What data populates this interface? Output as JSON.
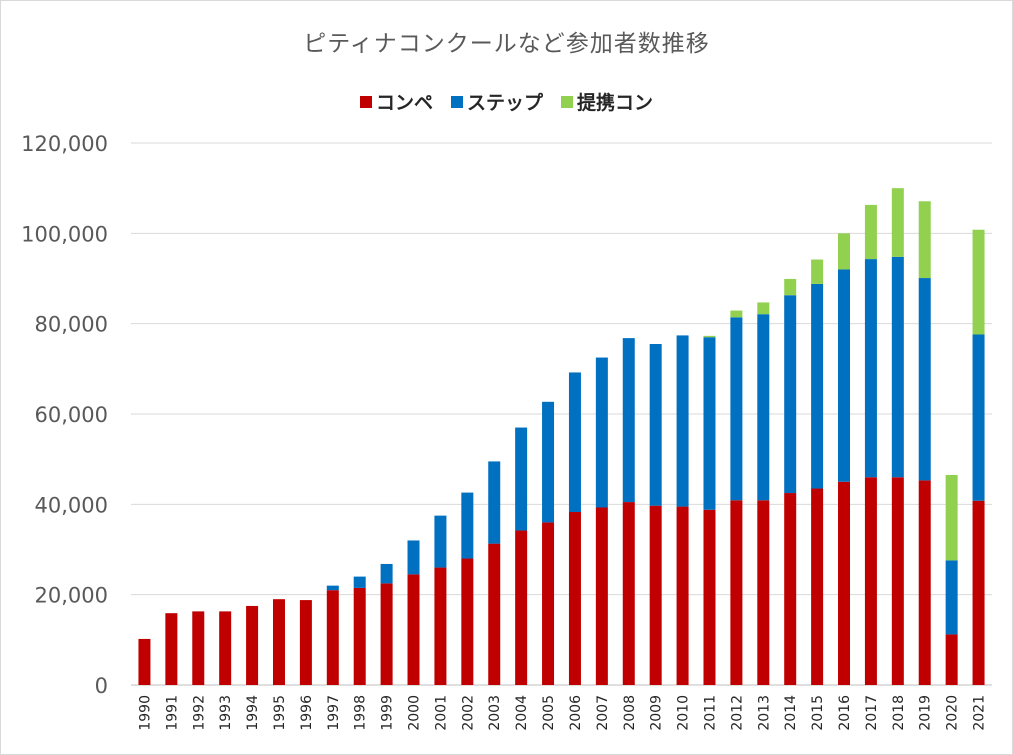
{
  "chart_data": {
    "type": "bar",
    "stacked": true,
    "title": "ピティナコンクールなど参加者数推移",
    "xlabel": "",
    "ylabel": "",
    "ylim": [
      0,
      120000
    ],
    "yticks": [
      0,
      20000,
      40000,
      60000,
      80000,
      100000,
      120000
    ],
    "ytick_labels": [
      "0",
      "20,000",
      "40,000",
      "60,000",
      "80,000",
      "100,000",
      "120,000"
    ],
    "grid": true,
    "legend_position": "top",
    "categories": [
      "1990",
      "1991",
      "1992",
      "1993",
      "1994",
      "1995",
      "1996",
      "1997",
      "1998",
      "1999",
      "2000",
      "2001",
      "2002",
      "2003",
      "2004",
      "2005",
      "2006",
      "2007",
      "2008",
      "2009",
      "2010",
      "2011",
      "2012",
      "2013",
      "2014",
      "2015",
      "2016",
      "2017",
      "2018",
      "2019",
      "2020",
      "2021"
    ],
    "series": [
      {
        "name": "コンペ",
        "color": "#c00000",
        "values": [
          10200,
          15900,
          16300,
          16300,
          17500,
          19000,
          18800,
          21000,
          21500,
          22500,
          24500,
          26000,
          28000,
          31300,
          34200,
          36000,
          38300,
          39300,
          40500,
          39700,
          39500,
          38800,
          40900,
          40900,
          42500,
          43500,
          45000,
          46000,
          46000,
          45300,
          11200,
          40800
        ]
      },
      {
        "name": "ステップ",
        "color": "#0070c0",
        "values": [
          0,
          0,
          0,
          0,
          0,
          0,
          0,
          1000,
          2500,
          4300,
          7500,
          11500,
          14600,
          18200,
          22800,
          26700,
          30900,
          33200,
          36300,
          35800,
          37900,
          38200,
          40500,
          41200,
          43800,
          45300,
          47000,
          48300,
          48800,
          44800,
          16400,
          36800
        ]
      },
      {
        "name": "提携コン",
        "color": "#92d050",
        "values": [
          0,
          0,
          0,
          0,
          0,
          0,
          0,
          0,
          0,
          0,
          0,
          0,
          0,
          0,
          0,
          0,
          0,
          0,
          0,
          0,
          0,
          300,
          1500,
          2600,
          3600,
          5400,
          8000,
          12000,
          15200,
          17000,
          18900,
          23200
        ]
      }
    ]
  }
}
